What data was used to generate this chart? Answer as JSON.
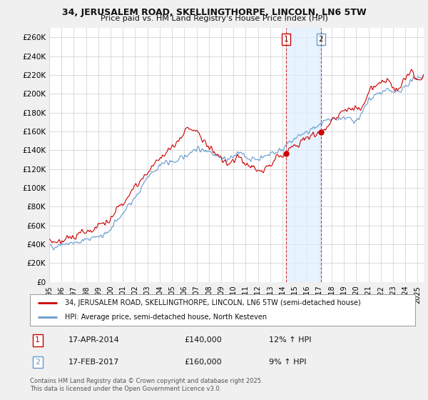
{
  "title1": "34, JERUSALEM ROAD, SKELLINGTHORPE, LINCOLN, LN6 5TW",
  "title2": "Price paid vs. HM Land Registry's House Price Index (HPI)",
  "ylabel_ticks": [
    "£0",
    "£20K",
    "£40K",
    "£60K",
    "£80K",
    "£100K",
    "£120K",
    "£140K",
    "£160K",
    "£180K",
    "£200K",
    "£220K",
    "£240K",
    "£260K"
  ],
  "ytick_vals": [
    0,
    20000,
    40000,
    60000,
    80000,
    100000,
    120000,
    140000,
    160000,
    180000,
    200000,
    220000,
    240000,
    260000
  ],
  "ylim": [
    0,
    270000
  ],
  "xlim_start": 1995.0,
  "xlim_end": 2025.5,
  "line1_color": "#cc0000",
  "line2_color": "#6699cc",
  "shade_color": "#deeeff",
  "event1_date": 2014.29,
  "event1_price": 140000,
  "event1_label": "1",
  "event2_date": 2017.12,
  "event2_price": 160000,
  "event2_label": "2",
  "legend_line1": "34, JERUSALEM ROAD, SKELLINGTHORPE, LINCOLN, LN6 5TW (semi-detached house)",
  "legend_line2": "HPI: Average price, semi-detached house, North Kesteven",
  "table_row1": [
    "1",
    "17-APR-2014",
    "£140,000",
    "12% ↑ HPI"
  ],
  "table_row2": [
    "2",
    "17-FEB-2017",
    "£160,000",
    "9% ↑ HPI"
  ],
  "footnote": "Contains HM Land Registry data © Crown copyright and database right 2025.\nThis data is licensed under the Open Government Licence v3.0.",
  "background_color": "#f0f0f0",
  "plot_bg_color": "#ffffff"
}
